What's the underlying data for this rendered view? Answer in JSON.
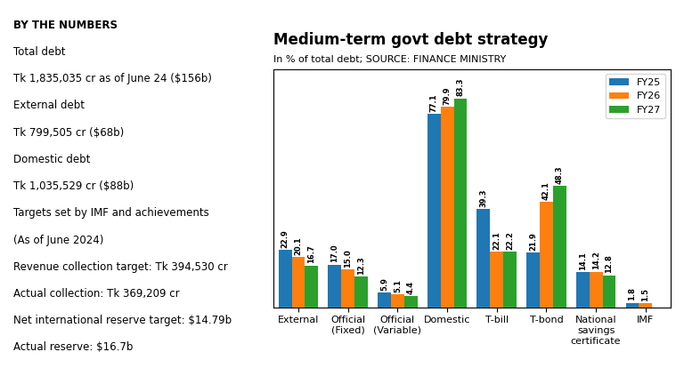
{
  "chart_data": {
    "type": "bar",
    "title": "Medium-term govt debt strategy",
    "subtitle": "In % of total debt; SOURCE: FINANCE MINISTRY",
    "categories": [
      "External",
      "Official\n(Fixed)",
      "Official\n(Variable)",
      "Domestic",
      "T-bill",
      "T-bond",
      "National\nsavings\ncertificate",
      "IMF"
    ],
    "series": [
      {
        "name": "FY25",
        "values": [
          22.9,
          17.0,
          5.9,
          77.1,
          39.3,
          21.9,
          14.1,
          1.8
        ]
      },
      {
        "name": "FY26",
        "values": [
          20.1,
          15.0,
          5.1,
          79.9,
          22.1,
          42.1,
          14.2,
          1.5
        ]
      },
      {
        "name": "FY27",
        "values": [
          16.7,
          12.3,
          4.4,
          83.3,
          22.2,
          48.3,
          12.8,
          0.0
        ],
        "value_labels": [
          "16.7",
          "12.3",
          "4.4",
          "83.3",
          "22.2",
          "48.3",
          "12.8",
          null
        ]
      }
    ],
    "ylim": [
      0,
      95
    ],
    "tick_labels": "x",
    "data_labels": true,
    "legend": "upper right",
    "grid": false,
    "annotations": [
      "BY THE NUMBERS",
      "Total debt",
      "Tk 1,835,035 cr as of June 24 ($156b)",
      "External debt",
      "Tk 799,505 cr ($68b)",
      "Domestic debt",
      "Tk 1,035,529 cr ($88b)",
      "Targets set by IMF and achievements",
      "(As of June 2024)",
      "Revenue collection target: Tk 394,530 cr",
      "Actual collection: Tk 369,209 cr",
      "Net international reserve target: $14.79b",
      "Actual reserve: $16.7b"
    ]
  }
}
